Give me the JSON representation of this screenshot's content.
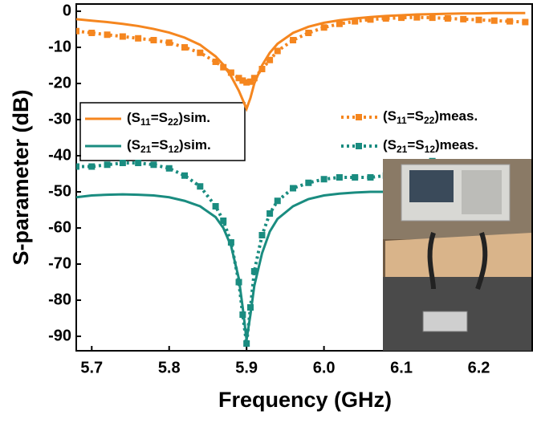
{
  "chart_data": {
    "type": "line",
    "x_label": "Frequency (GHz)",
    "y_label": "S-parameter (dB)",
    "xlim": [
      5.68,
      6.27
    ],
    "ylim": [
      -94,
      2
    ],
    "xticks": [
      5.7,
      5.8,
      5.9,
      {
        "value": 6,
        "label": "6.0"
      },
      6.1,
      6.2
    ],
    "yticks": [
      0,
      -10,
      -20,
      -30,
      -40,
      -50,
      -60,
      -70,
      -80,
      -90
    ],
    "x": [
      5.68,
      5.7,
      5.72,
      5.74,
      5.76,
      5.78,
      5.8,
      5.82,
      5.84,
      5.86,
      5.87,
      5.88,
      5.89,
      5.895,
      5.9,
      5.905,
      5.91,
      5.92,
      5.93,
      5.94,
      5.96,
      5.98,
      6.0,
      6.02,
      6.04,
      6.06,
      6.08,
      6.1,
      6.12,
      6.14,
      6.16,
      6.18,
      6.2,
      6.22,
      6.24,
      6.26
    ],
    "series": [
      {
        "name": "(S11=S22)sim.",
        "color": "#f5861f",
        "style": "solid",
        "values": [
          -2.2,
          -2.6,
          -3.0,
          -3.5,
          -4.1,
          -4.9,
          -5.9,
          -7.3,
          -9.3,
          -12.5,
          -14.8,
          -18,
          -22,
          -24.5,
          -27,
          -24,
          -20,
          -15,
          -11.5,
          -9,
          -6,
          -4.3,
          -3.2,
          -2.5,
          -2,
          -1.6,
          -1.3,
          -1.1,
          -0.9,
          -0.8,
          -0.7,
          -0.6,
          -0.6,
          -0.5,
          -0.5,
          -0.5
        ]
      },
      {
        "name": "(S21=S12)sim.",
        "color": "#1a8c80",
        "style": "solid",
        "values": [
          -51.5,
          -51,
          -50.8,
          -50.7,
          -50.8,
          -51,
          -51.5,
          -52.5,
          -54,
          -57,
          -60,
          -65,
          -74,
          -82,
          -91,
          -84,
          -76,
          -67,
          -61,
          -57.5,
          -54,
          -52,
          -51,
          -50.5,
          -50.2,
          -50,
          -50,
          -50,
          -50,
          -50,
          -50,
          -50,
          -50,
          -50,
          -50,
          -50
        ]
      },
      {
        "name": "(S11=S22)meas.",
        "color": "#f5861f",
        "style": "dotted",
        "marker": "square",
        "values": [
          -5.5,
          -6,
          -6.5,
          -7,
          -7.5,
          -8,
          -8.7,
          -10,
          -11.5,
          -14,
          -15.5,
          -17,
          -18.5,
          -19.2,
          -19.7,
          -19.5,
          -18.5,
          -16,
          -13.5,
          -11,
          -8,
          -6,
          -4.5,
          -3.5,
          -2.8,
          -2.3,
          -2,
          -1.8,
          -1.7,
          -1.8,
          -2,
          -2.2,
          -2.4,
          -2.6,
          -2.8,
          -3
        ]
      },
      {
        "name": "(S21=S12)meas.",
        "color": "#1a8c80",
        "style": "dotted",
        "marker": "square",
        "values": [
          -43,
          -43,
          -42.5,
          -42,
          -42,
          -42.5,
          -43.5,
          -45.5,
          -48.5,
          -54,
          -58,
          -64,
          -75,
          -84,
          -92,
          -82,
          -72,
          -62,
          -56,
          -52.5,
          -49,
          -47.5,
          -46.5,
          -46,
          -46,
          -46,
          -45.5,
          -44,
          -42,
          -41.5,
          -42,
          -43,
          -44,
          -44.5,
          -45,
          -45
        ]
      }
    ]
  }
}
